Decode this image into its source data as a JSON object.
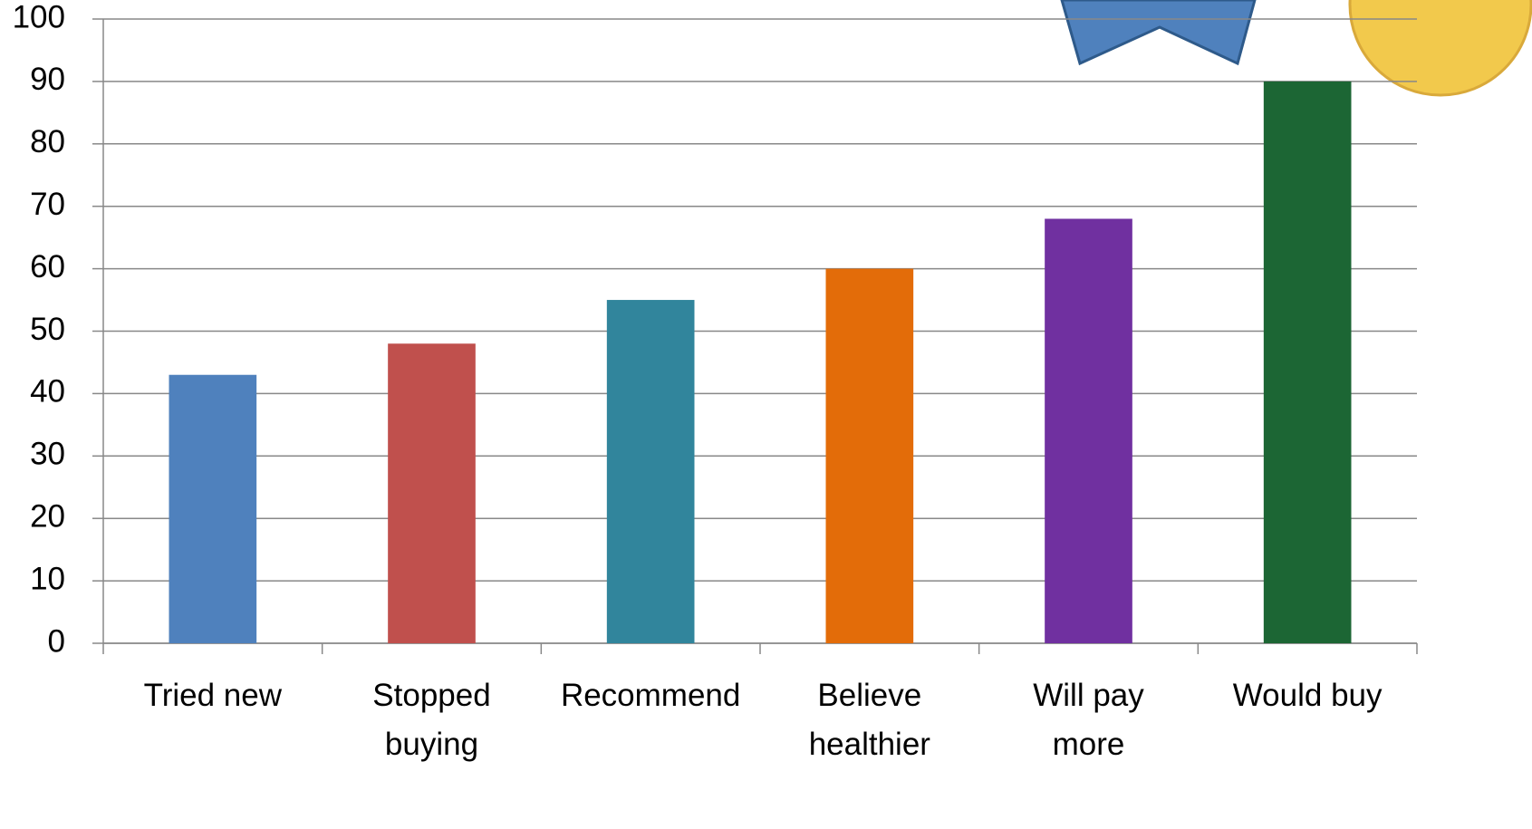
{
  "chart_data": {
    "type": "bar",
    "categories": [
      "Tried new",
      "Stopped buying",
      "Recommend",
      "Believe healthier",
      "Will pay more",
      "Would buy"
    ],
    "values": [
      43,
      48,
      55,
      60,
      68,
      90
    ],
    "colors": [
      "#4f81bd",
      "#c0504d",
      "#31859c",
      "#e36c09",
      "#7030a0",
      "#1c6634"
    ],
    "ylim": [
      0,
      100
    ],
    "yticks": [
      0,
      10,
      20,
      30,
      40,
      50,
      60,
      70,
      80,
      90,
      100
    ],
    "grid": true
  }
}
